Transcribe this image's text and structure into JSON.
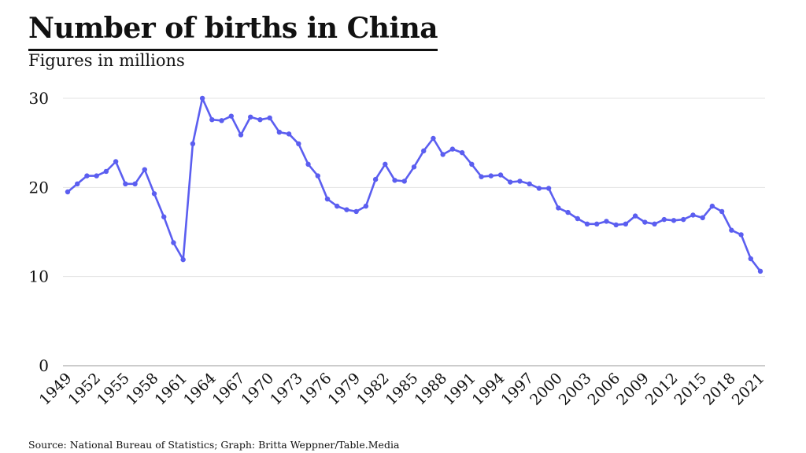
{
  "title": "Number of births in China",
  "subtitle": "Figures in millions",
  "source": "Source: National Bureau of Statistics; Graph: Britta Weppner/Table.Media",
  "colors": {
    "line": "#5b5ef0",
    "text": "#111111",
    "grid": "#e3e3e3"
  },
  "chart_data": {
    "type": "line",
    "grid": true,
    "legend": "none",
    "ylim": [
      0,
      30
    ],
    "yticks": [
      0,
      10,
      20,
      30
    ],
    "xticks": [
      "1949",
      "1952",
      "1955",
      "1958",
      "1961",
      "1964",
      "1967",
      "1970",
      "1973",
      "1976",
      "1979",
      "1982",
      "1985",
      "1988",
      "1991",
      "1994",
      "1997",
      "2000",
      "2003",
      "2006",
      "2009",
      "2012",
      "2015",
      "2018",
      "2021"
    ],
    "series": [
      {
        "x": [
          1949,
          1950,
          1951,
          1952,
          1953,
          1954,
          1955,
          1956,
          1957,
          1958,
          1959,
          1960,
          1961,
          1962,
          1963,
          1964,
          1965,
          1966,
          1967,
          1968,
          1969,
          1970,
          1971,
          1972,
          1973,
          1974,
          1975,
          1976,
          1977,
          1978,
          1979,
          1980,
          1981,
          1982,
          1983,
          1984,
          1985,
          1986,
          1987,
          1988,
          1989,
          1990,
          1991,
          1992,
          1993,
          1994,
          1995,
          1996,
          1997,
          1998,
          1999,
          2000,
          2001,
          2002,
          2003,
          2004,
          2005,
          2006,
          2007,
          2008,
          2009,
          2010,
          2011,
          2012,
          2013,
          2014,
          2015,
          2016,
          2017,
          2018,
          2019,
          2020,
          2021
        ],
        "values": [
          19.5,
          20.4,
          21.3,
          21.3,
          21.8,
          22.9,
          20.4,
          20.4,
          22.0,
          19.3,
          16.7,
          13.8,
          11.9,
          24.9,
          30.0,
          27.6,
          27.5,
          28.0,
          25.9,
          27.9,
          27.6,
          27.8,
          26.2,
          26.0,
          24.9,
          22.6,
          21.3,
          18.7,
          17.9,
          17.5,
          17.3,
          17.9,
          20.9,
          22.6,
          20.8,
          20.7,
          22.3,
          24.1,
          25.5,
          23.7,
          24.3,
          23.9,
          22.6,
          21.2,
          21.3,
          21.4,
          20.6,
          20.7,
          20.4,
          19.9,
          19.9,
          17.7,
          17.2,
          16.5,
          15.9,
          15.9,
          16.2,
          15.8,
          15.9,
          16.8,
          16.1,
          15.9,
          16.4,
          16.3,
          16.4,
          16.9,
          16.6,
          17.9,
          17.3,
          15.2,
          14.7,
          12.0,
          10.6
        ]
      }
    ]
  }
}
